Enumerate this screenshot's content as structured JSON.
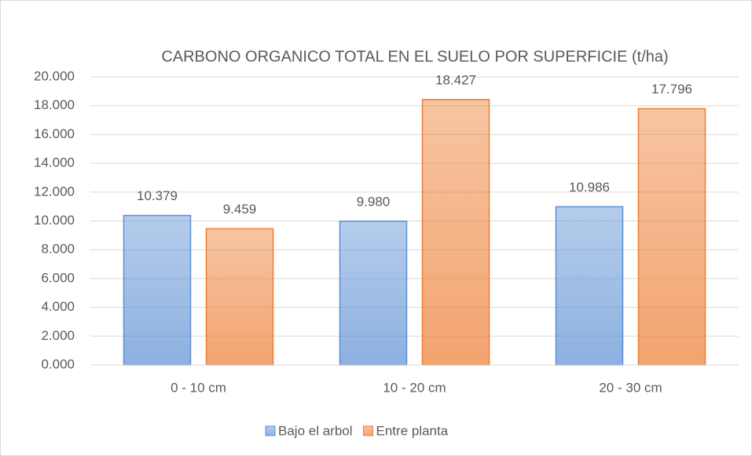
{
  "chart_data": {
    "type": "bar",
    "title": "CARBONO ORGANICO TOTAL EN EL SUELO POR SUPERFICIE (t/ha)",
    "categories": [
      "0 - 10 cm",
      "10 - 20 cm",
      "20 - 30  cm"
    ],
    "series": [
      {
        "name": "Bajo el arbol",
        "color": "#5b8fd4",
        "values": [
          10.379,
          9.98,
          10.986
        ],
        "value_labels": [
          "10.379",
          "9.980",
          "10.986"
        ]
      },
      {
        "name": "Entre planta",
        "color": "#ed7d31",
        "values": [
          9.459,
          18.427,
          17.796
        ],
        "value_labels": [
          "9.459",
          "18.427",
          "17.796"
        ]
      }
    ],
    "ylim": [
      0,
      20
    ],
    "yticks": [
      {
        "value": 0,
        "label": "0.000"
      },
      {
        "value": 2,
        "label": "2.000"
      },
      {
        "value": 4,
        "label": "4.000"
      },
      {
        "value": 6,
        "label": "6.000"
      },
      {
        "value": 8,
        "label": "8.000"
      },
      {
        "value": 10,
        "label": "10.000"
      },
      {
        "value": 12,
        "label": "12.000"
      },
      {
        "value": 14,
        "label": "14.000"
      },
      {
        "value": 16,
        "label": "16.000"
      },
      {
        "value": 18,
        "label": "18.000"
      },
      {
        "value": 20,
        "label": "20.000"
      }
    ],
    "grid": true,
    "legend": "bottom"
  }
}
